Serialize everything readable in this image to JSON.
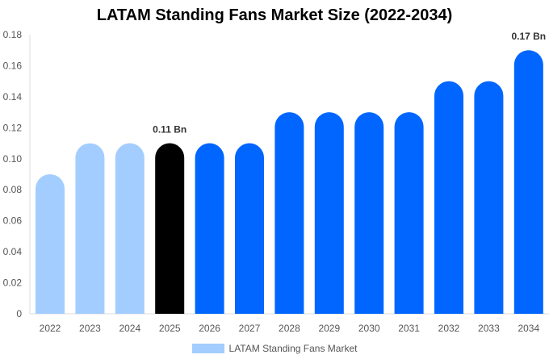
{
  "chart_data": {
    "type": "bar",
    "title": "LATAM Standing Fans Market Size (2022-2034)",
    "categories": [
      "2022",
      "2023",
      "2024",
      "2025",
      "2026",
      "2027",
      "2028",
      "2029",
      "2030",
      "2031",
      "2032",
      "2033",
      "2034"
    ],
    "series": [
      {
        "name": "LATAM Standing Fans Market",
        "values": [
          0.09,
          0.11,
          0.11,
          0.11,
          0.11,
          0.11,
          0.13,
          0.13,
          0.13,
          0.13,
          0.15,
          0.15,
          0.17
        ]
      }
    ],
    "bar_colors": [
      "#a3cdff",
      "#a3cdff",
      "#a3cdff",
      "#000000",
      "#0066ff",
      "#0066ff",
      "#0066ff",
      "#0066ff",
      "#0066ff",
      "#0066ff",
      "#0066ff",
      "#0066ff",
      "#0066ff"
    ],
    "data_labels": {
      "3": "0.11 Bn",
      "12": "0.17 Bn"
    },
    "yticks": [
      "0",
      "0.02",
      "0.04",
      "0.06",
      "0.08",
      "0.10",
      "0.12",
      "0.14",
      "0.16",
      "0.18"
    ],
    "ylim": [
      0,
      0.18
    ],
    "xlabel": "",
    "ylabel": "",
    "grid": false,
    "legend_position": "bottom",
    "legend_color": "#a3cdff"
  }
}
